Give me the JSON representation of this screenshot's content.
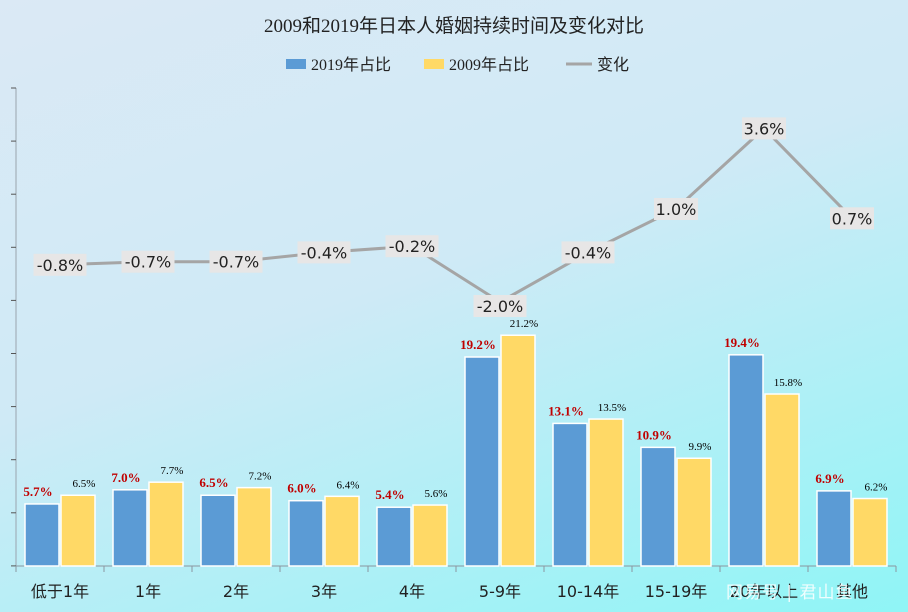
{
  "chart_data": {
    "type": "bar",
    "title": "2009和2019年日本人婚姻持续时间及变化对比",
    "categories": [
      "低于1年",
      "1年",
      "2年",
      "3年",
      "4年",
      "5-9年",
      "10-14年",
      "15-19年",
      "20年以上",
      "其他"
    ],
    "series": [
      {
        "name": "2019年占比",
        "type": "bar",
        "color": "#5b9bd5",
        "values": [
          5.7,
          7.0,
          6.5,
          6.0,
          5.4,
          19.2,
          13.1,
          10.9,
          19.4,
          6.9
        ],
        "labels": [
          "5.7%",
          "7.0%",
          "6.5%",
          "6.0%",
          "5.4%",
          "19.2%",
          "13.1%",
          "10.9%",
          "19.4%",
          "6.9%"
        ]
      },
      {
        "name": "2009年占比",
        "type": "bar",
        "color": "#ffd966",
        "values": [
          6.5,
          7.7,
          7.2,
          6.4,
          5.6,
          21.2,
          13.5,
          9.9,
          15.8,
          6.2
        ],
        "labels": [
          "6.5%",
          "7.7%",
          "7.2%",
          "6.4%",
          "5.6%",
          "21.2%",
          "13.5%",
          "9.9%",
          "15.8%",
          "6.2%"
        ]
      },
      {
        "name": "变化",
        "type": "line",
        "color": "#a5a5a5",
        "values": [
          -0.8,
          -0.7,
          -0.7,
          -0.4,
          -0.2,
          -2.0,
          -0.4,
          1.0,
          3.6,
          0.7
        ],
        "labels": [
          "-0.8%",
          "-0.7%",
          "-0.7%",
          "-0.4%",
          "-0.2%",
          "-2.0%",
          "-0.4%",
          "1.0%",
          "3.6%",
          "0.7%"
        ]
      }
    ],
    "legend_position": "top",
    "colors": {
      "label_2019": "#c00000",
      "label_2009": "#000000",
      "change_label_bg": "#e7e6e6"
    }
  },
  "watermark": "网易号 | 君山鱼"
}
